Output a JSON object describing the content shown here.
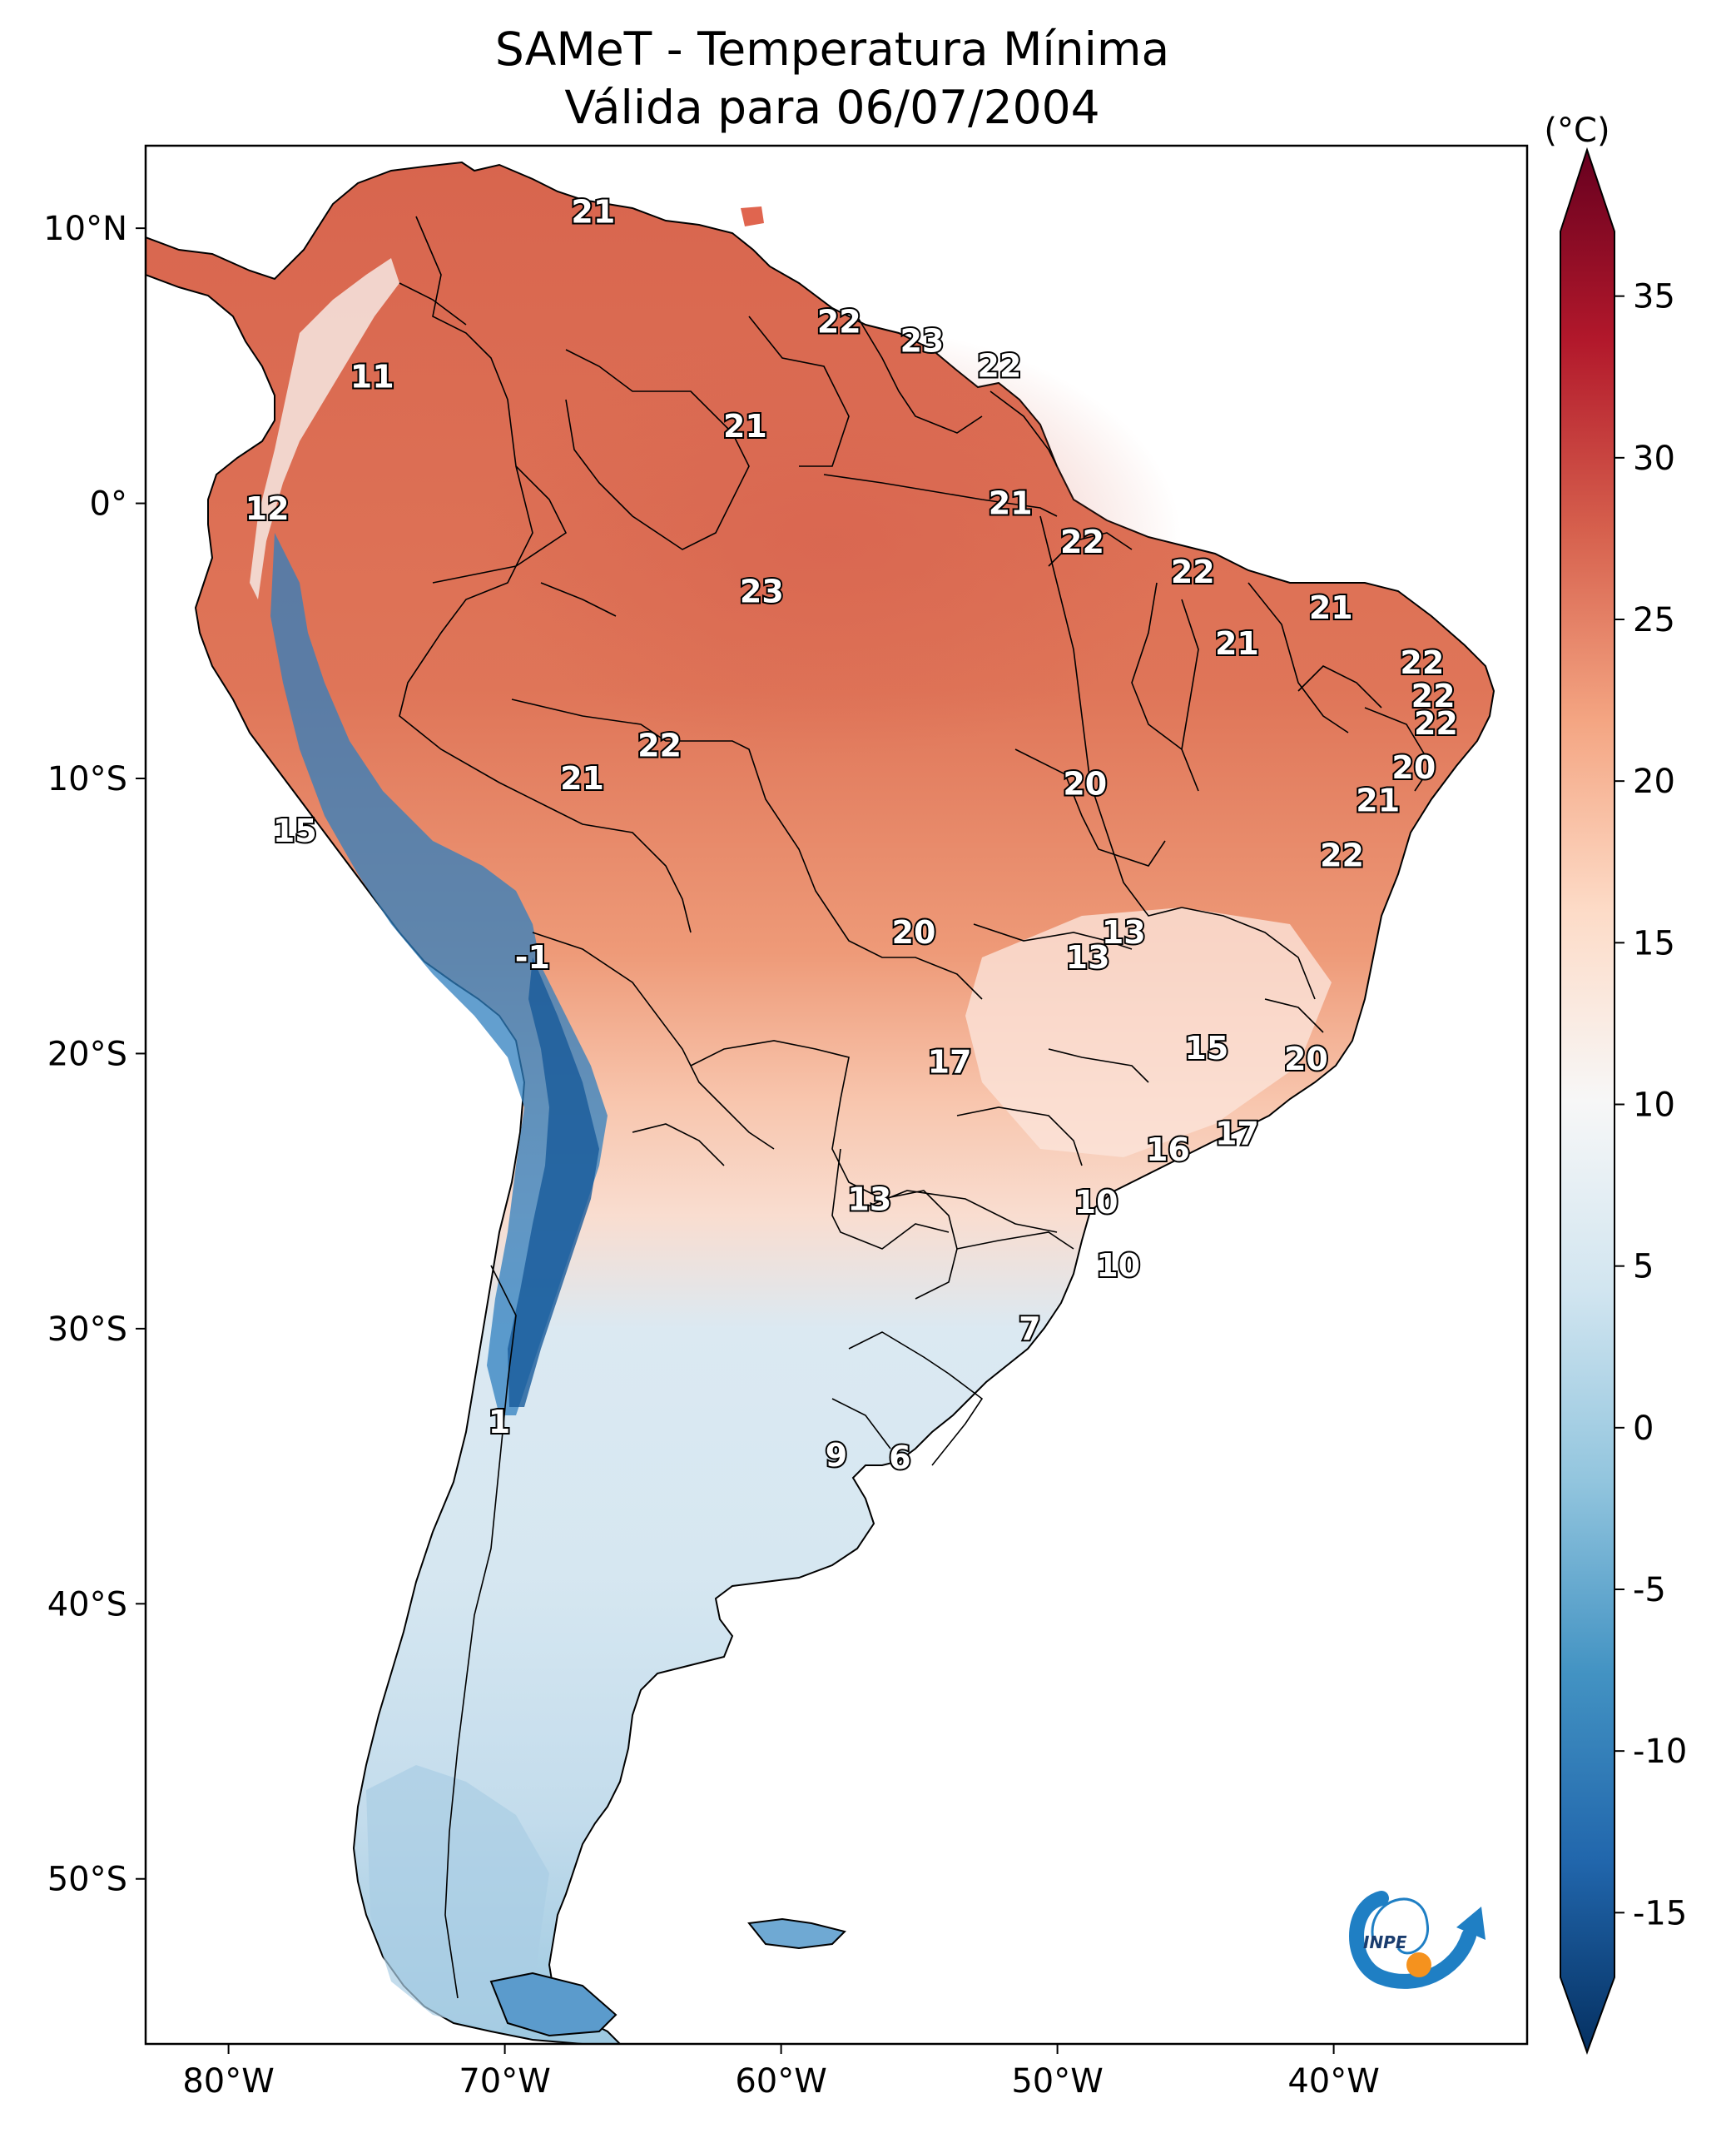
{
  "title": {
    "line1": "SAMeT - Temperatura Mínima",
    "line2": "Válida para 06/07/2004"
  },
  "colorbar": {
    "unit_label": "(°C)",
    "ticks": [
      35,
      30,
      25,
      20,
      15,
      10,
      5,
      0,
      -5,
      -10,
      -15
    ],
    "tick_labels": [
      "35",
      "30",
      "25",
      "20",
      "15",
      "10",
      "5",
      "0",
      "-5",
      "-10",
      "-15"
    ],
    "range": [
      -17,
      37
    ],
    "colormap": "RdBu_r",
    "colors": {
      "top": "#67001f",
      "high": "#b2182b",
      "warm": "#d6604d",
      "light_warm": "#f4a582",
      "pale_warm": "#fddbc7",
      "neutral": "#f7f7f7",
      "pale_cool": "#d1e5f0",
      "light_cool": "#92c5de",
      "cool": "#4393c3",
      "deep": "#2166ac",
      "bottom": "#053061"
    }
  },
  "axes": {
    "x_tick_labels": [
      "80°W",
      "70°W",
      "60°W",
      "50°W",
      "40°W"
    ],
    "x_tick_values": [
      -80,
      -70,
      -60,
      -50,
      -40
    ],
    "y_tick_labels": [
      "10°N",
      "0°",
      "10°S",
      "20°S",
      "30°S",
      "40°S",
      "50°S"
    ],
    "y_tick_values": [
      10,
      0,
      -10,
      -20,
      -30,
      -40,
      -50
    ],
    "lon_range": [
      -83,
      -33
    ],
    "lat_range": [
      -56,
      13
    ]
  },
  "station_labels": [
    {
      "text": "21",
      "lon": -66.8,
      "lat": 10.6
    },
    {
      "text": "22",
      "lon": -57.9,
      "lat": 6.6
    },
    {
      "text": "23",
      "lon": -54.9,
      "lat": 5.9
    },
    {
      "text": "22",
      "lon": -52.1,
      "lat": 5.0
    },
    {
      "text": "11",
      "lon": -74.8,
      "lat": 4.6
    },
    {
      "text": "21",
      "lon": -61.3,
      "lat": 2.8
    },
    {
      "text": "21",
      "lon": -51.7,
      "lat": 0.0
    },
    {
      "text": "12",
      "lon": -78.6,
      "lat": -0.2
    },
    {
      "text": "22",
      "lon": -49.1,
      "lat": -1.4
    },
    {
      "text": "22",
      "lon": -45.1,
      "lat": -2.5
    },
    {
      "text": "23",
      "lon": -60.7,
      "lat": -3.2
    },
    {
      "text": "21",
      "lon": -40.1,
      "lat": -3.8
    },
    {
      "text": "21",
      "lon": -43.5,
      "lat": -5.1
    },
    {
      "text": "22",
      "lon": -36.8,
      "lat": -5.8
    },
    {
      "text": "22",
      "lon": -36.4,
      "lat": -7.0
    },
    {
      "text": "22",
      "lon": -36.3,
      "lat": -8.0
    },
    {
      "text": "22",
      "lon": -64.4,
      "lat": -8.8
    },
    {
      "text": "20",
      "lon": -37.1,
      "lat": -9.6
    },
    {
      "text": "21",
      "lon": -67.2,
      "lat": -10.0
    },
    {
      "text": "20",
      "lon": -49.0,
      "lat": -10.2
    },
    {
      "text": "21",
      "lon": -38.4,
      "lat": -10.8
    },
    {
      "text": "15",
      "lon": -77.6,
      "lat": -11.9
    },
    {
      "text": "22",
      "lon": -39.7,
      "lat": -12.8
    },
    {
      "text": "20",
      "lon": -55.2,
      "lat": -15.6
    },
    {
      "text": "13",
      "lon": -47.6,
      "lat": -15.6
    },
    {
      "text": "13",
      "lon": -48.9,
      "lat": -16.5
    },
    {
      "text": "-1",
      "lon": -69.0,
      "lat": -16.5
    },
    {
      "text": "15",
      "lon": -44.6,
      "lat": -19.8
    },
    {
      "text": "17",
      "lon": -53.9,
      "lat": -20.3
    },
    {
      "text": "20",
      "lon": -41.0,
      "lat": -20.2
    },
    {
      "text": "17",
      "lon": -43.5,
      "lat": -22.9
    },
    {
      "text": "16",
      "lon": -46.0,
      "lat": -23.5
    },
    {
      "text": "13",
      "lon": -56.8,
      "lat": -25.3
    },
    {
      "text": "10",
      "lon": -48.6,
      "lat": -25.4
    },
    {
      "text": "10",
      "lon": -47.8,
      "lat": -27.7
    },
    {
      "text": "7",
      "lon": -51.0,
      "lat": -30.0
    },
    {
      "text": "1",
      "lon": -70.2,
      "lat": -33.4
    },
    {
      "text": "9",
      "lon": -58.0,
      "lat": -34.6
    },
    {
      "text": "6",
      "lon": -55.7,
      "lat": -34.7
    }
  ],
  "logo": {
    "text": "INPE",
    "colors": {
      "arrow": "#1f7fc4",
      "dot": "#f5921e"
    }
  }
}
